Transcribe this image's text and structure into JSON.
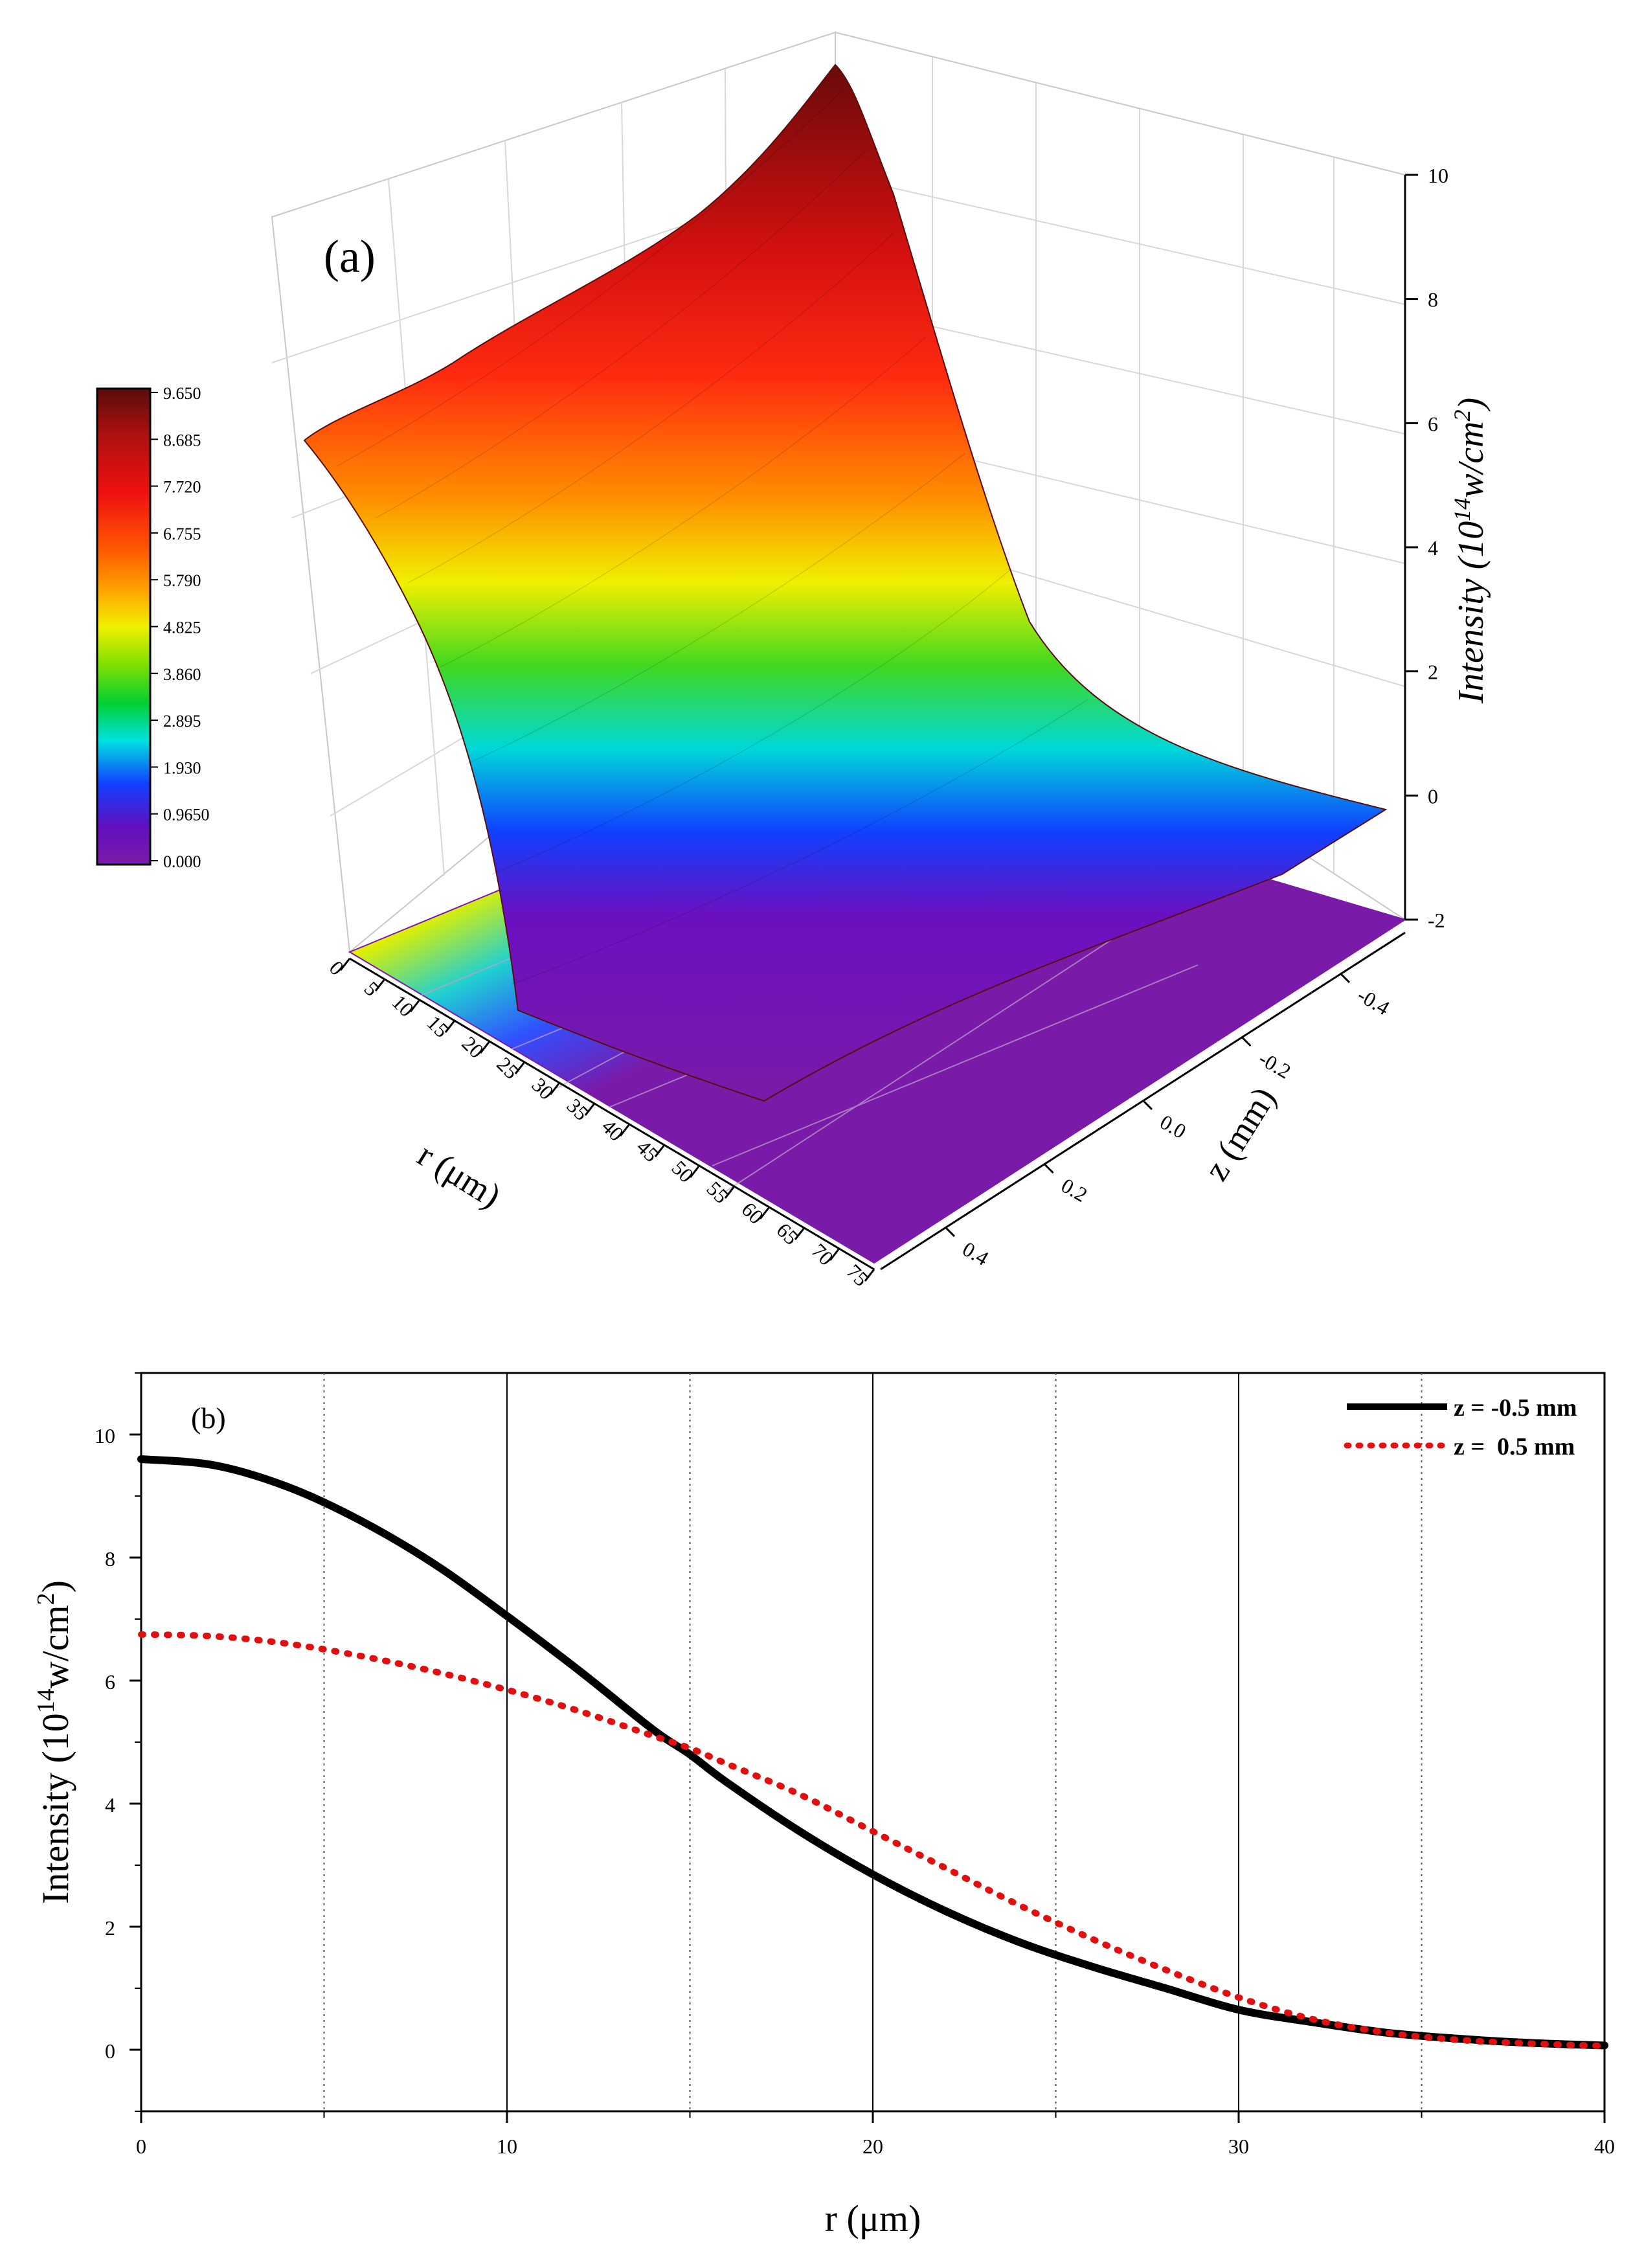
{
  "chart_data": [
    {
      "type": "surface3d",
      "panel_label": "(a)",
      "xlabel": "r (μm)",
      "ylabel": "z (mm)",
      "zlabel": "Intensity (10",
      "zlabel_exp": "14",
      "zlabel_unit": "w/cm",
      "zlabel_unit_exp": "2",
      "zlabel_close": ")",
      "r_ticks": [
        "0",
        "5",
        "10",
        "15",
        "20",
        "25",
        "30",
        "35",
        "40",
        "45",
        "50",
        "55",
        "60",
        "65",
        "70",
        "75"
      ],
      "z_ticks": [
        "0.4",
        "0.2",
        "0.0",
        "-0.2",
        "-0.4"
      ],
      "intensity_ticks": [
        "-2",
        "0",
        "2",
        "4",
        "6",
        "8",
        "10"
      ],
      "r_range": [
        0,
        75
      ],
      "z_range": [
        -0.5,
        0.5
      ],
      "intensity_range": [
        -2,
        10
      ],
      "peak_at_z_minus_0_5": 9.6,
      "peak_at_z_plus_0_5": 6.75,
      "colorbar": {
        "ticks": [
          "9.650",
          "8.685",
          "7.720",
          "6.755",
          "5.790",
          "4.825",
          "3.860",
          "2.895",
          "1.930",
          "0.9650",
          "0.000"
        ],
        "colors": [
          "#5a0c0c",
          "#b01010",
          "#f01010",
          "#ff5a00",
          "#ffa000",
          "#f0f000",
          "#80e000",
          "#00d030",
          "#00e0e0",
          "#1040ff",
          "#6010c0",
          "#7a1aa8"
        ]
      }
    },
    {
      "type": "line",
      "panel_label": "(b)",
      "xlabel": "r (μm)",
      "ylabel": "Intensity (10",
      "ylabel_exp": "14",
      "ylabel_unit": "w/cm",
      "ylabel_unit_exp": "2",
      "ylabel_close": ")",
      "xlim": [
        0,
        40
      ],
      "ylim": [
        -1,
        11
      ],
      "x_ticks": [
        0,
        10,
        20,
        30,
        40
      ],
      "y_ticks": [
        0,
        2,
        4,
        6,
        8,
        10
      ],
      "legend_position": "top-right",
      "x": [
        0,
        2,
        4,
        6,
        8,
        10,
        12,
        14,
        15,
        16,
        18,
        20,
        22,
        24,
        26,
        28,
        30,
        32,
        34,
        36,
        38,
        40
      ],
      "series": [
        {
          "name": "z = -0.5 mm",
          "color": "#000000",
          "style": "solid",
          "values": [
            9.6,
            9.5,
            9.15,
            8.6,
            7.9,
            7.05,
            6.15,
            5.2,
            4.8,
            4.35,
            3.55,
            2.85,
            2.25,
            1.75,
            1.35,
            1.0,
            0.65,
            0.45,
            0.28,
            0.18,
            0.11,
            0.07
          ]
        },
        {
          "name": "z =  0.5 mm",
          "color": "#e01010",
          "style": "dotted",
          "values": [
            6.75,
            6.72,
            6.6,
            6.4,
            6.15,
            5.85,
            5.5,
            5.1,
            4.9,
            4.65,
            4.15,
            3.55,
            2.95,
            2.35,
            1.8,
            1.3,
            0.85,
            0.5,
            0.28,
            0.16,
            0.1,
            0.06
          ]
        }
      ]
    }
  ]
}
